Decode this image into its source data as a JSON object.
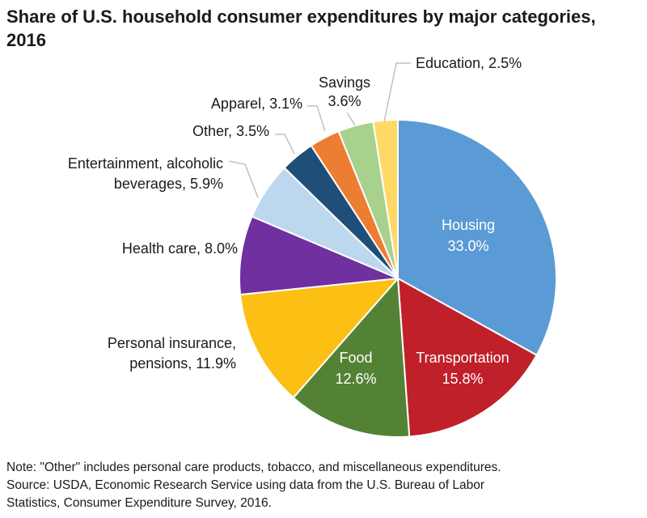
{
  "title_lines": [
    "Share of U.S. household consumer expenditures by major categories,",
    "2016"
  ],
  "chart_data": {
    "type": "pie",
    "title": "Share of U.S. household consumer expenditures by major categories, 2016",
    "unit": "percent",
    "start": "12 o'clock, clockwise",
    "slices": [
      {
        "name": "Housing",
        "value": 33.0,
        "color": "#5b9bd5",
        "label_lines": [
          "Housing",
          "33.0%"
        ],
        "label_inside": true
      },
      {
        "name": "Transportation",
        "value": 15.8,
        "color": "#c0202a",
        "label_lines": [
          "Transportation",
          "15.8%"
        ],
        "label_inside": true
      },
      {
        "name": "Food",
        "value": 12.6,
        "color": "#548235",
        "label_lines": [
          "Food",
          "12.6%"
        ],
        "label_inside": true
      },
      {
        "name": "Personal insurance, pensions",
        "value": 11.9,
        "color": "#fcbf13",
        "label_lines": [
          "Personal insurance,",
          "pensions, 11.9%"
        ],
        "label_inside": false
      },
      {
        "name": "Health care",
        "value": 8.0,
        "color": "#7030a0",
        "label_lines": [
          "Health care, 8.0%"
        ],
        "label_inside": false
      },
      {
        "name": "Entertainment, alcoholic beverages",
        "value": 5.9,
        "color": "#bdd7ee",
        "label_lines": [
          "Entertainment, alcoholic",
          "beverages, 5.9%"
        ],
        "label_inside": false
      },
      {
        "name": "Other",
        "value": 3.5,
        "color": "#1f4e79",
        "label_lines": [
          "Other, 3.5%"
        ],
        "label_inside": false
      },
      {
        "name": "Apparel",
        "value": 3.1,
        "color": "#ed7d31",
        "label_lines": [
          "Apparel, 3.1%"
        ],
        "label_inside": false
      },
      {
        "name": "Savings",
        "value": 3.6,
        "color": "#a9d18e",
        "label_lines": [
          "Savings",
          "3.6%"
        ],
        "label_inside": false
      },
      {
        "name": "Education",
        "value": 2.5,
        "color": "#ffd966",
        "label_lines": [
          "Education, 2.5%"
        ],
        "label_inside": false
      }
    ]
  },
  "footer": {
    "note": "Note: \"Other\" includes personal care products, tobacco, and miscellaneous expenditures.",
    "source_line1": "Source: USDA, Economic Research Service using data from the U.S. Bureau of Labor",
    "source_line2": "Statistics, Consumer Expenditure Survey, 2016."
  }
}
